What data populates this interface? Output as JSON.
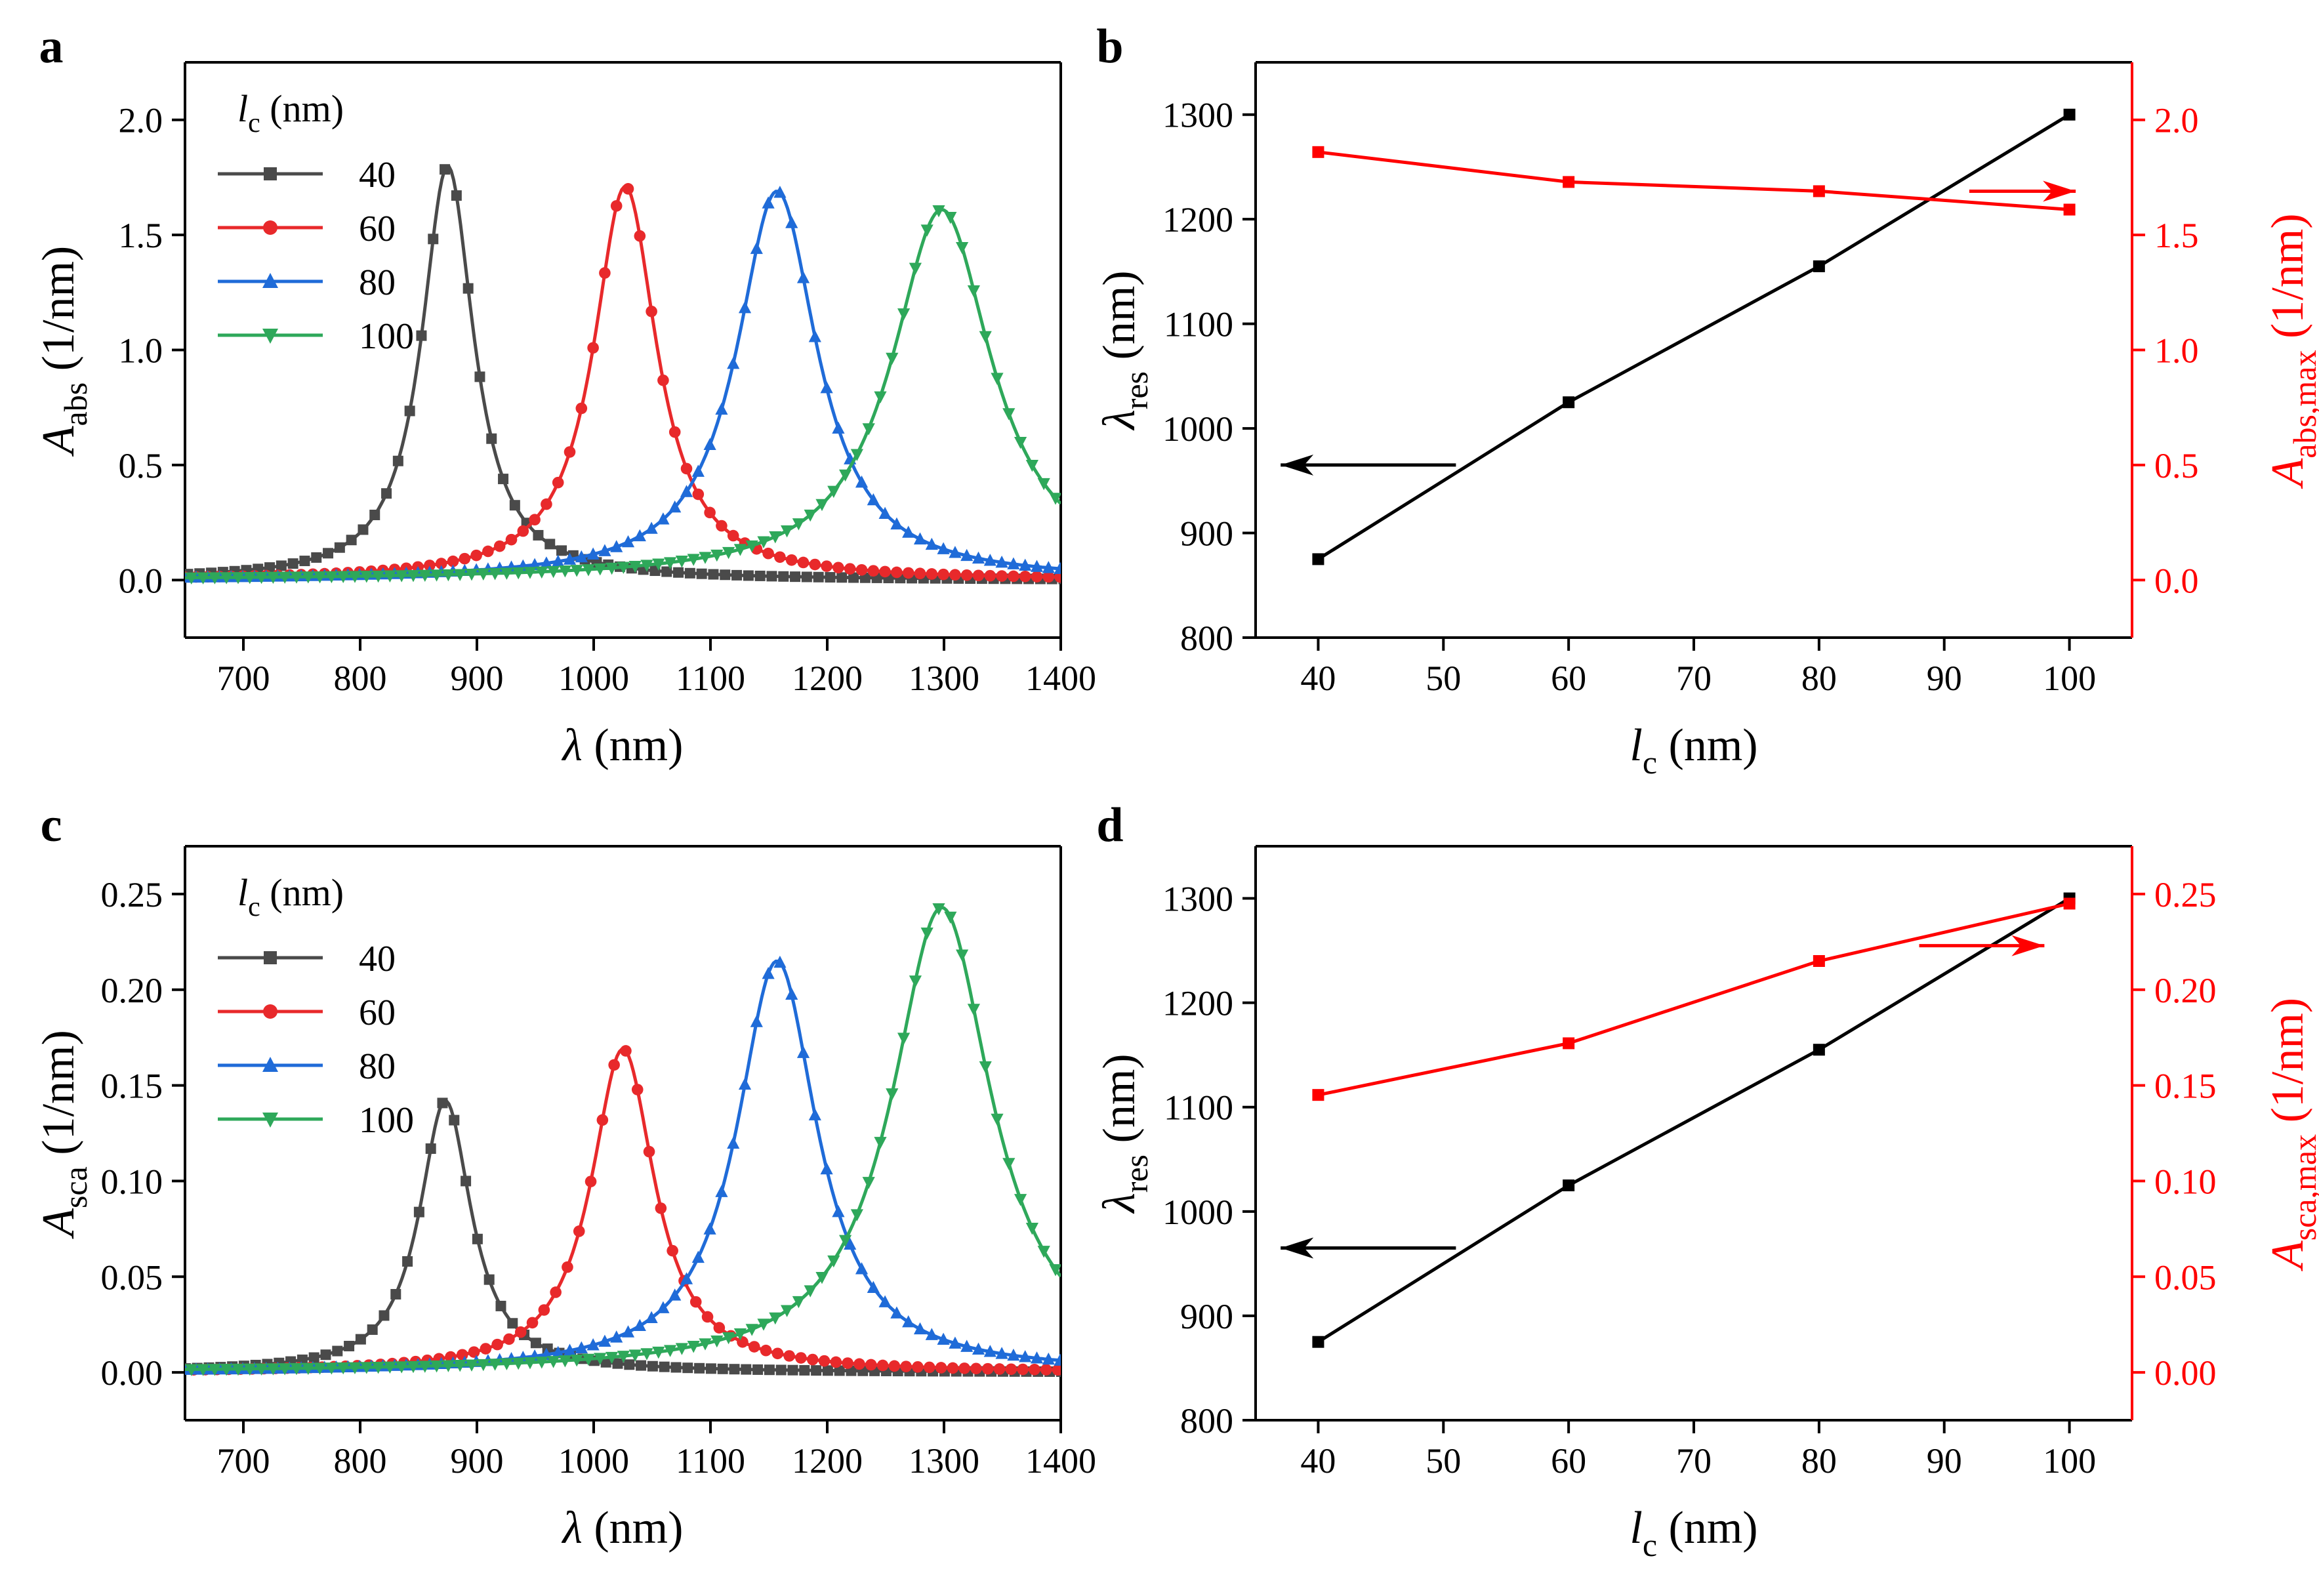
{
  "colors": {
    "axis": "#000000",
    "black": "#4a4a4a",
    "red": "#e8292b",
    "blue": "#1f6bd8",
    "green": "#2ea85a",
    "right_axis": "#ff0000"
  },
  "chart_data": [
    {
      "panel": "a",
      "type": "line",
      "title": "",
      "xlabel": "λ (nm)",
      "ylabel": "A_abs (1/nm)",
      "ylabel_main": "A",
      "ylabel_sub": "abs",
      "ylabel_unit": " (1/nm)",
      "xlim": [
        650,
        1400
      ],
      "ylim": [
        -0.25,
        2.25
      ],
      "xticks": [
        700,
        800,
        900,
        1000,
        1100,
        1200,
        1300,
        1400
      ],
      "yticks": [
        0.0,
        0.5,
        1.0,
        1.5,
        2.0
      ],
      "ytick_labels": [
        "0.0",
        "0.5",
        "1.0",
        "1.5",
        "2.0"
      ],
      "legend_title_main": "l",
      "legend_title_sub": "c",
      "legend_title_unit": " (nm)",
      "series": [
        {
          "name": "40",
          "peak_x": 875,
          "peak_y": 1.8,
          "hwhm": 27,
          "marker": "square",
          "color_key": "black"
        },
        {
          "name": "60",
          "peak_x": 1027,
          "peak_y": 1.71,
          "hwhm": 33,
          "marker": "circle",
          "color_key": "red"
        },
        {
          "name": "80",
          "peak_x": 1157,
          "peak_y": 1.69,
          "hwhm": 42,
          "marker": "triangle-up",
          "color_key": "blue"
        },
        {
          "name": "100",
          "peak_x": 1298,
          "peak_y": 1.61,
          "hwhm": 52,
          "marker": "triangle-down",
          "color_key": "green"
        }
      ]
    },
    {
      "panel": "b",
      "type": "line",
      "xlabel": "l_c (nm)",
      "ylabel": "λ_res (nm)",
      "ylabel_right": "A_abs,max (1/nm)",
      "xlabel_main": "l",
      "xlabel_sub": "c",
      "xlabel_unit": " (nm)",
      "ylabel_main": "λ",
      "ylabel_sub": "res",
      "ylabel_unit": " (nm)",
      "ylabel_right_main": "A",
      "ylabel_right_sub": "abs,max",
      "ylabel_right_unit": " (1/nm)",
      "xlim": [
        35,
        105
      ],
      "ylim": [
        800,
        1350
      ],
      "ylim_right": [
        -0.25,
        2.25
      ],
      "xticks": [
        40,
        50,
        60,
        70,
        80,
        90,
        100
      ],
      "yticks": [
        800,
        900,
        1000,
        1100,
        1200,
        1300
      ],
      "yticks_right": [
        0.0,
        0.5,
        1.0,
        1.5,
        2.0
      ],
      "ytick_right_labels": [
        "0.0",
        "0.5",
        "1.0",
        "1.5",
        "2.0"
      ],
      "x": [
        40,
        60,
        80,
        100
      ],
      "series": [
        {
          "name": "λ_res",
          "axis": "left",
          "values": [
            875,
            1025,
            1155,
            1300
          ],
          "color_key": "axis"
        },
        {
          "name": "A_abs,max",
          "axis": "right",
          "values": [
            1.86,
            1.73,
            1.69,
            1.61
          ],
          "color_key": "right_axis"
        }
      ],
      "arrows": [
        {
          "axis": "left",
          "from_x": 51,
          "to_x": 37,
          "y_value": 965
        },
        {
          "axis": "right",
          "from_x": 92,
          "to_x": 100.5,
          "y_value": 1.69
        }
      ]
    },
    {
      "panel": "c",
      "type": "line",
      "xlabel": "λ (nm)",
      "ylabel": "A_sca (1/nm)",
      "ylabel_main": "A",
      "ylabel_sub": "sca",
      "ylabel_unit": " (1/nm)",
      "xlim": [
        650,
        1400
      ],
      "ylim": [
        -0.025,
        0.275
      ],
      "xticks": [
        700,
        800,
        900,
        1000,
        1100,
        1200,
        1300,
        1400
      ],
      "yticks": [
        0.0,
        0.05,
        0.1,
        0.15,
        0.2,
        0.25
      ],
      "ytick_labels": [
        "0.00",
        "0.05",
        "0.10",
        "0.15",
        "0.20",
        "0.25"
      ],
      "legend_title_main": "l",
      "legend_title_sub": "c",
      "legend_title_unit": " (nm)",
      "series": [
        {
          "name": "40",
          "peak_x": 873,
          "peak_y": 0.142,
          "hwhm": 27,
          "marker": "square",
          "color_key": "black"
        },
        {
          "name": "60",
          "peak_x": 1025,
          "peak_y": 0.169,
          "hwhm": 33,
          "marker": "circle",
          "color_key": "red"
        },
        {
          "name": "80",
          "peak_x": 1157,
          "peak_y": 0.215,
          "hwhm": 42,
          "marker": "triangle-up",
          "color_key": "blue"
        },
        {
          "name": "100",
          "peak_x": 1298,
          "peak_y": 0.243,
          "hwhm": 52,
          "marker": "triangle-down",
          "color_key": "green"
        }
      ]
    },
    {
      "panel": "d",
      "type": "line",
      "xlabel": "l_c (nm)",
      "ylabel": "λ_res (nm)",
      "ylabel_right": "A_sca,max (1/nm)",
      "xlabel_main": "l",
      "xlabel_sub": "c",
      "xlabel_unit": " (nm)",
      "ylabel_main": "λ",
      "ylabel_sub": "res",
      "ylabel_unit": " (nm)",
      "ylabel_right_main": "A",
      "ylabel_right_sub": "sca,max",
      "ylabel_right_unit": " (1/nm)",
      "xlim": [
        35,
        105
      ],
      "ylim": [
        800,
        1350
      ],
      "ylim_right": [
        -0.025,
        0.275
      ],
      "xticks": [
        40,
        50,
        60,
        70,
        80,
        90,
        100
      ],
      "yticks": [
        800,
        900,
        1000,
        1100,
        1200,
        1300
      ],
      "yticks_right": [
        0.0,
        0.05,
        0.1,
        0.15,
        0.2,
        0.25
      ],
      "ytick_right_labels": [
        "0.00",
        "0.05",
        "0.10",
        "0.15",
        "0.20",
        "0.25"
      ],
      "x": [
        40,
        60,
        80,
        100
      ],
      "series": [
        {
          "name": "λ_res",
          "axis": "left",
          "values": [
            875,
            1025,
            1155,
            1300
          ],
          "color_key": "axis"
        },
        {
          "name": "A_sca,max",
          "axis": "right",
          "values": [
            0.145,
            0.172,
            0.215,
            0.245
          ],
          "color_key": "right_axis"
        }
      ],
      "arrows": [
        {
          "axis": "left",
          "from_x": 51,
          "to_x": 37,
          "y_value": 965
        },
        {
          "axis": "right",
          "from_x": 88,
          "to_x": 98,
          "y_value": 0.223
        }
      ]
    }
  ]
}
